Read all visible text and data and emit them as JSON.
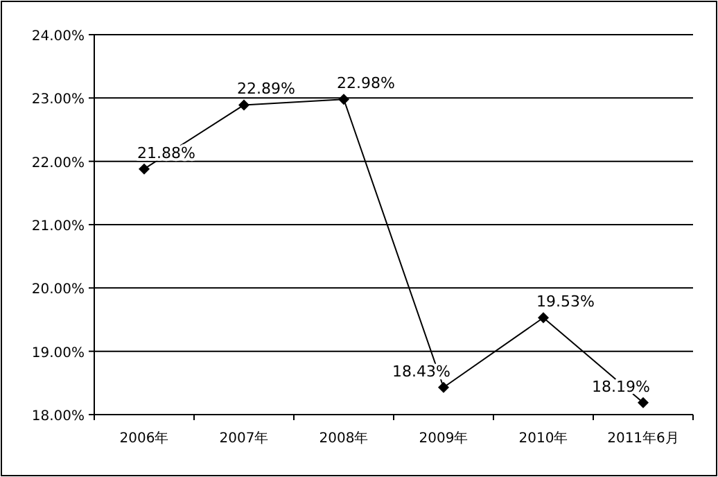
{
  "chart_data": {
    "type": "line",
    "categories": [
      "2006年",
      "2007年",
      "2008年",
      "2009年",
      "2010年",
      "2011年6月"
    ],
    "series": [
      {
        "color": "#000000",
        "values": [
          21.88,
          22.89,
          22.98,
          18.43,
          19.53,
          18.19
        ],
        "value_labels": [
          "21.88%",
          "22.89%",
          "22.98%",
          "18.43%",
          "19.53%",
          "18.19%"
        ]
      }
    ],
    "ylim": [
      18,
      24
    ],
    "yticks": [
      {
        "value": 18,
        "label": "18.00%"
      },
      {
        "value": 19,
        "label": "19.00%"
      },
      {
        "value": 20,
        "label": "20.00%"
      },
      {
        "value": 21,
        "label": "21.00%"
      },
      {
        "value": 22,
        "label": "22.00%"
      },
      {
        "value": 23,
        "label": "23.00%"
      },
      {
        "value": 24,
        "label": "24.00%"
      }
    ],
    "grid": "y",
    "marker": "diamond",
    "line_style": "solid"
  }
}
